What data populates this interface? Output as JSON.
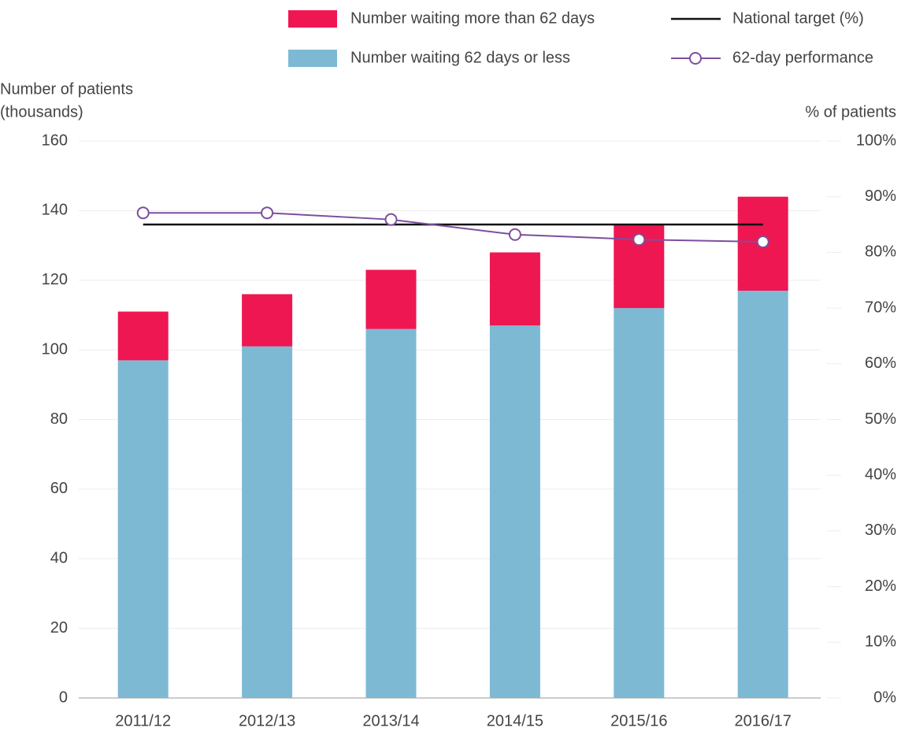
{
  "chart_data": {
    "type": "bar",
    "ylabel": [
      "Number of patients",
      "(thousands)"
    ],
    "y2label": "% of patients",
    "categories": [
      "2011/12",
      "2012/13",
      "2013/14",
      "2014/15",
      "2015/16",
      "2016/17"
    ],
    "series": [
      {
        "name": "Number waiting 62 days or less",
        "color": "#7eb9d4",
        "values": [
          97,
          101,
          106,
          107,
          112,
          117
        ]
      },
      {
        "name": "Number waiting more than 62 days",
        "color": "#ee1751",
        "values": [
          14,
          15,
          17,
          21,
          24,
          27
        ]
      },
      {
        "name": "62-day performance",
        "color": "#7b4f9e",
        "axis": "y2",
        "values": [
          87.1,
          87.1,
          85.9,
          83.2,
          82.3,
          81.9
        ]
      }
    ],
    "target": {
      "name": "National target (%)",
      "color": "#111111",
      "value": 85,
      "axis": "y2"
    },
    "ylim": [
      0,
      160
    ],
    "yticks": [
      0,
      20,
      40,
      60,
      80,
      100,
      120,
      140,
      160
    ],
    "y2lim": [
      0,
      100
    ],
    "y2ticks": [
      {
        "value": 0,
        "label": "0%"
      },
      {
        "value": 10,
        "label": "10%"
      },
      {
        "value": 20,
        "label": "20%"
      },
      {
        "value": 30,
        "label": "30%"
      },
      {
        "value": 40,
        "label": "40%"
      },
      {
        "value": 50,
        "label": "50%"
      },
      {
        "value": 60,
        "label": "60%"
      },
      {
        "value": 70,
        "label": "70%"
      },
      {
        "value": 80,
        "label": "80%"
      },
      {
        "value": 90,
        "label": "90%"
      },
      {
        "value": 100,
        "label": "100%"
      }
    ],
    "grid": true
  }
}
